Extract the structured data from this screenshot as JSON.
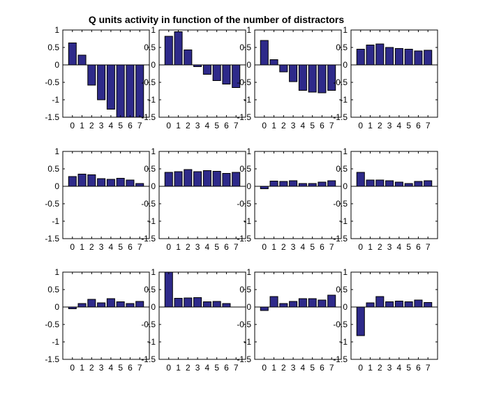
{
  "title": "Q units activity in function of the number of distractors",
  "colors": {
    "bar_fill": "#2e2a8a",
    "bar_edge": "#000000",
    "axis": "#000000"
  },
  "chart_data": {
    "type": "bar",
    "title": "Q units activity in function of the number of distractors",
    "categories": [
      "0",
      "1",
      "2",
      "3",
      "4",
      "5",
      "6",
      "7"
    ],
    "ylim": [
      -1.5,
      1
    ],
    "yticks": [
      "1",
      "0.5",
      "0",
      "-0.5",
      "-1",
      "-1.5"
    ],
    "ytick_values": [
      1,
      0.5,
      0,
      -0.5,
      -1,
      -1.5
    ],
    "grid": false,
    "panels": [
      {
        "values": [
          0.63,
          0.28,
          -0.58,
          -1.0,
          -1.27,
          -1.5,
          -1.5,
          -1.5
        ]
      },
      {
        "values": [
          0.82,
          0.95,
          0.43,
          -0.05,
          -0.27,
          -0.45,
          -0.55,
          -0.65
        ]
      },
      {
        "values": [
          0.7,
          0.15,
          -0.2,
          -0.48,
          -0.73,
          -0.78,
          -0.8,
          -0.73
        ]
      },
      {
        "values": [
          0.45,
          0.57,
          0.6,
          0.5,
          0.47,
          0.45,
          0.4,
          0.42
        ]
      },
      {
        "values": [
          0.28,
          0.35,
          0.33,
          0.22,
          0.2,
          0.23,
          0.18,
          0.08
        ]
      },
      {
        "values": [
          0.4,
          0.42,
          0.48,
          0.42,
          0.45,
          0.43,
          0.37,
          0.4
        ]
      },
      {
        "values": [
          -0.07,
          0.15,
          0.14,
          0.16,
          0.08,
          0.08,
          0.12,
          0.16
        ]
      },
      {
        "values": [
          0.4,
          0.18,
          0.18,
          0.16,
          0.12,
          0.08,
          0.14,
          0.16
        ]
      },
      {
        "values": [
          -0.05,
          0.1,
          0.22,
          0.12,
          0.24,
          0.15,
          0.1,
          0.16
        ]
      },
      {
        "values": [
          1.0,
          0.25,
          0.26,
          0.27,
          0.15,
          0.16,
          0.1,
          0.0
        ]
      },
      {
        "values": [
          -0.1,
          0.3,
          0.1,
          0.16,
          0.24,
          0.24,
          0.2,
          0.34
        ]
      },
      {
        "values": [
          -0.82,
          0.12,
          0.3,
          0.15,
          0.17,
          0.15,
          0.2,
          0.13
        ]
      }
    ]
  }
}
